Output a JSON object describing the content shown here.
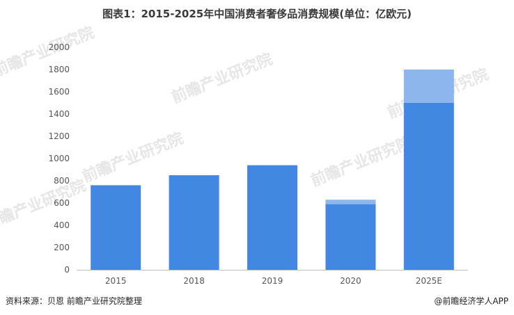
{
  "title": "图表1：2015-2025年中国消费者奢侈品消费规模(单位：亿欧元)",
  "footer": {
    "source": "资料来源：贝恩 前瞻产业研究院整理",
    "brand": "@前瞻经济学人APP"
  },
  "watermark": {
    "text": "前瞻产业研究院"
  },
  "colors": {
    "base": "#4287e2",
    "increment": "#8db6ee",
    "axis": "#bfbfbf",
    "tick_text": "#555555"
  },
  "chart_data": {
    "type": "bar",
    "stacked": true,
    "categories": [
      "2015",
      "2018",
      "2019",
      "2020",
      "2025E"
    ],
    "series": [
      {
        "values": [
          760,
          850,
          940,
          590,
          1500
        ]
      },
      {
        "values": [
          0,
          0,
          0,
          40,
          300
        ]
      }
    ],
    "title": "图表1：2015-2025年中国消费者奢侈品消费规模(单位：亿欧元)",
    "xlabel": "",
    "ylabel": "",
    "ylim": [
      0,
      2000
    ],
    "yticks": [
      0,
      200,
      400,
      600,
      800,
      1000,
      1200,
      1400,
      1600,
      1800,
      2000
    ],
    "grid": false,
    "legend": "none"
  }
}
